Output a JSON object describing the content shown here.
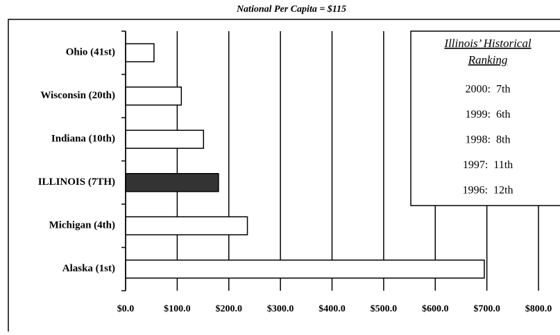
{
  "chart_data": {
    "type": "bar",
    "orientation": "horizontal",
    "subtitle": "National Per Capita = $115",
    "categories": [
      "Ohio (41st)",
      "Wisconsin (20th)",
      "Indiana (10th)",
      "ILLINOIS (7TH)",
      "Michigan (4th)",
      "Alaska (1st)"
    ],
    "values": [
      55,
      108,
      151,
      180,
      236,
      695
    ],
    "colors": [
      "#ffffff",
      "#ffffff",
      "#ffffff",
      "#333333",
      "#ffffff",
      "#ffffff"
    ],
    "xlim": [
      0,
      800
    ],
    "xticks": [
      {
        "value": 0,
        "label": "$0.0"
      },
      {
        "value": 100,
        "label": "$100.0"
      },
      {
        "value": 200,
        "label": "$200.0"
      },
      {
        "value": 300,
        "label": "$300.0"
      },
      {
        "value": 400,
        "label": "$400.0"
      },
      {
        "value": 500,
        "label": "$500.0"
      },
      {
        "value": 600,
        "label": "$600.0"
      },
      {
        "value": 700,
        "label": "$700.0"
      },
      {
        "value": 800,
        "label": "$800.0"
      }
    ],
    "grid": true,
    "annotation_title": [
      "Illinois’ Historical",
      "Ranking"
    ],
    "annotations": [
      "2000:  7th",
      "1999:  6th",
      "1998:  8th",
      "1997:  11th",
      "1996:  12th"
    ]
  }
}
